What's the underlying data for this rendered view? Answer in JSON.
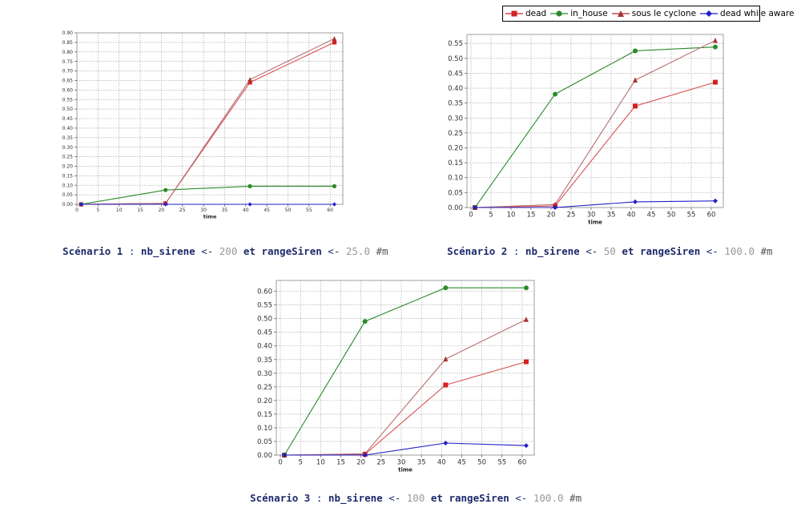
{
  "legend": {
    "items": [
      {
        "label": "dead",
        "color": "#d42020",
        "marker": "square"
      },
      {
        "label": "in_house",
        "color": "#2a8a2a",
        "marker": "circle"
      },
      {
        "label": "sous le cyclone",
        "color": "#a83232",
        "marker": "triangle"
      },
      {
        "label": "dead while aware",
        "color": "#2020c8",
        "marker": "diamond"
      }
    ]
  },
  "chart_data": [
    {
      "type": "line",
      "xlabel": "time",
      "xlim": [
        0,
        63
      ],
      "ylim": [
        0,
        0.9
      ],
      "xticks": [
        0,
        5,
        10,
        15,
        20,
        25,
        30,
        35,
        40,
        45,
        50,
        55,
        60
      ],
      "yticks": [
        0.0,
        0.05,
        0.1,
        0.15,
        0.2,
        0.25,
        0.3,
        0.35,
        0.4,
        0.45,
        0.5,
        0.55,
        0.6,
        0.65,
        0.7,
        0.75,
        0.8,
        0.85,
        0.9
      ],
      "ytick_decimals": 2,
      "x": [
        1,
        21,
        41,
        61
      ],
      "series": [
        {
          "name": "dead",
          "values": [
            0.0,
            0.005,
            0.64,
            0.85
          ]
        },
        {
          "name": "in_house",
          "values": [
            0.0,
            0.075,
            0.095,
            0.095
          ]
        },
        {
          "name": "sous le cyclone",
          "values": [
            0.0,
            0.005,
            0.655,
            0.87
          ]
        },
        {
          "name": "dead while aware",
          "values": [
            0.0,
            0.0,
            0.0,
            0.0
          ]
        }
      ],
      "grid": true
    },
    {
      "type": "line",
      "xlabel": "time",
      "xlim": [
        -1,
        63
      ],
      "ylim": [
        0,
        0.58
      ],
      "xticks": [
        0,
        5,
        10,
        15,
        20,
        25,
        30,
        35,
        40,
        45,
        50,
        55,
        60
      ],
      "yticks": [
        0.0,
        0.05,
        0.1,
        0.15,
        0.2,
        0.25,
        0.3,
        0.35,
        0.4,
        0.45,
        0.5,
        0.55
      ],
      "ytick_decimals": 2,
      "x": [
        1,
        21,
        41,
        61
      ],
      "series": [
        {
          "name": "dead",
          "values": [
            0.0,
            0.005,
            0.34,
            0.42
          ]
        },
        {
          "name": "in_house",
          "values": [
            0.0,
            0.38,
            0.525,
            0.538
          ]
        },
        {
          "name": "sous le cyclone",
          "values": [
            0.0,
            0.01,
            0.427,
            0.56
          ]
        },
        {
          "name": "dead while aware",
          "values": [
            0.0,
            0.0,
            0.019,
            0.022
          ]
        }
      ],
      "grid": true
    },
    {
      "type": "line",
      "xlabel": "time",
      "xlim": [
        -1,
        63
      ],
      "ylim": [
        0,
        0.64
      ],
      "xticks": [
        0,
        5,
        10,
        15,
        20,
        25,
        30,
        35,
        40,
        45,
        50,
        55,
        60
      ],
      "yticks": [
        0.0,
        0.05,
        0.1,
        0.15,
        0.2,
        0.25,
        0.3,
        0.35,
        0.4,
        0.45,
        0.5,
        0.55,
        0.6
      ],
      "ytick_decimals": 2,
      "x": [
        1,
        21,
        41,
        61
      ],
      "series": [
        {
          "name": "dead",
          "values": [
            0.0,
            0.003,
            0.257,
            0.342
          ]
        },
        {
          "name": "in_house",
          "values": [
            0.0,
            0.49,
            0.613,
            0.613
          ]
        },
        {
          "name": "sous le cyclone",
          "values": [
            0.0,
            0.005,
            0.352,
            0.497
          ]
        },
        {
          "name": "dead while aware",
          "values": [
            0.0,
            0.0,
            0.044,
            0.035
          ]
        }
      ],
      "grid": true
    }
  ],
  "captions": [
    {
      "label": "Scénario 1",
      "sep": ":",
      "v1": "nb_sirene",
      "arrow1": "<-",
      "n1": "200",
      "et": "et",
      "v2": "rangeSiren",
      "arrow2": "<-",
      "n2": "25.0",
      "unit": "#m"
    },
    {
      "label": "Scénario 2",
      "sep": ":",
      "v1": "nb_sirene",
      "arrow1": "<-",
      "n1": "50",
      "et": "et",
      "v2": "rangeSiren",
      "arrow2": "<-",
      "n2": "100.0",
      "unit": "#m"
    },
    {
      "label": "Scénario 3",
      "sep": ":",
      "v1": "nb_sirene",
      "arrow1": "<-",
      "n1": "100",
      "et": "et",
      "v2": "rangeSiren",
      "arrow2": "<-",
      "n2": "100.0",
      "unit": "#m"
    }
  ]
}
